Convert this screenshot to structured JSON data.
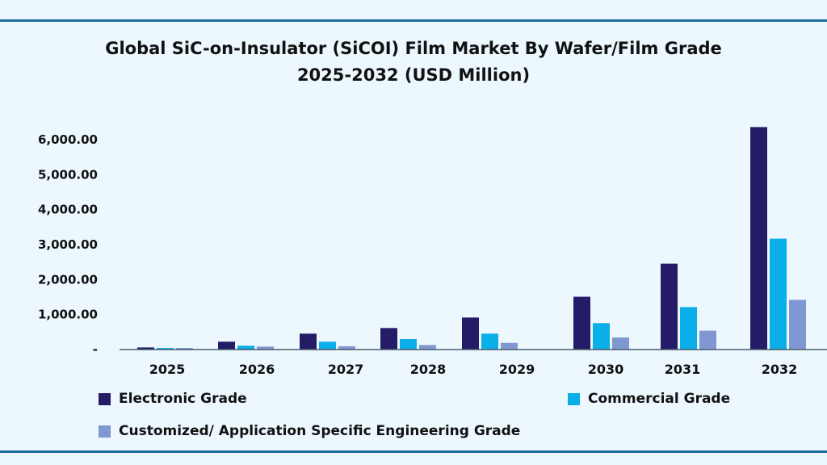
{
  "chart_data": {
    "type": "bar",
    "title": "Global SiC-on-Insulator (SiCOI) Film Market By Wafer/Film Grade",
    "subtitle": "2025-2032 (USD Million)",
    "xlabel": "",
    "ylabel": "",
    "categories": [
      "2025",
      "2026",
      "2027",
      "2028",
      "2029",
      "2030",
      "2031",
      "2032"
    ],
    "ylim": [
      0,
      6000
    ],
    "yticks": [
      0,
      1000,
      2000,
      3000,
      4000,
      5000,
      6000
    ],
    "ytick_labels": [
      "-",
      "1,000.00",
      "2,000.00",
      "3,000.00",
      "4,000.00",
      "5,000.00",
      "6,000.00"
    ],
    "grid": false,
    "legend_position": "bottom",
    "series": [
      {
        "name": "Electronic Grade",
        "color": "#241c66",
        "values": [
          60,
          225,
          455,
          615,
          915,
          1510,
          2455,
          6360
        ]
      },
      {
        "name": "Commercial Grade",
        "color": "#0aaee8",
        "values": [
          45,
          110,
          225,
          300,
          455,
          755,
          1215,
          3170
        ]
      },
      {
        "name": "Customized/ Application Specific Engineering Grade",
        "color": "#7f98d1",
        "values": [
          45,
          85,
          95,
          130,
          190,
          345,
          540,
          1420
        ]
      }
    ]
  },
  "frame_color": "#1b6f9f"
}
